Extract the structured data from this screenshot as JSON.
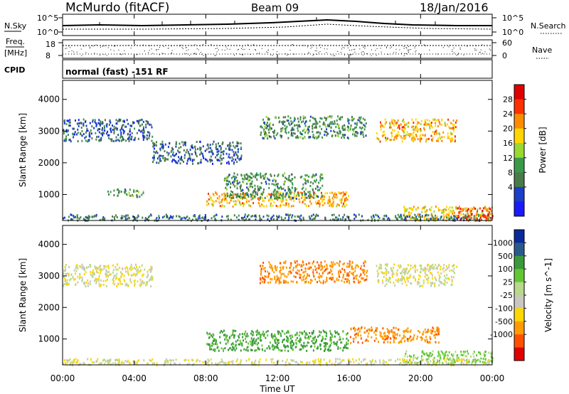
{
  "header": {
    "station": "McMurdo (fitACF)",
    "beam": "Beam 09",
    "date": "18/Jan/2016"
  },
  "params": {
    "nsky_label": "N.Sky",
    "nsky_ticks": [
      "10^5",
      "10^0"
    ],
    "nsearch_label": "N.Search",
    "nsearch_ticks": [
      "10^5",
      "10^0"
    ],
    "freq_label": "Freq.",
    "freq_unit": "[MHz]",
    "freq_ticks": [
      "18",
      "8"
    ],
    "nave_label": "Nave",
    "nave_ticks": [
      "60",
      "0"
    ],
    "cpid_label": "CPID",
    "cpid_text": "normal (fast) -151 RF"
  },
  "chart_data": [
    {
      "type": "heatmap",
      "title": "",
      "xlabel": "Time UT",
      "ylabel": "Slant Range [km]",
      "colorbar_label": "Power [dB]",
      "xlim": [
        0,
        24
      ],
      "ylim": [
        180,
        4600
      ],
      "x_ticks": [
        "00:00",
        "04:00",
        "08:00",
        "12:00",
        "16:00",
        "20:00",
        "00:00"
      ],
      "y_ticks": [
        1000,
        2000,
        3000,
        4000
      ],
      "colorbar_ticks": [
        "28",
        "24",
        "20",
        "16",
        "12",
        "8",
        "4"
      ],
      "colorbar_colors": [
        "#e00000",
        "#ff3000",
        "#ff8c00",
        "#ffd700",
        "#9ad832",
        "#3a9a4a",
        "#4a7a4a",
        "#1a3fc8",
        "#1a1aff"
      ],
      "regions": [
        {
          "t0": 0.0,
          "t1": 5.0,
          "r0": 2700,
          "r1": 3400,
          "value": 6
        },
        {
          "t0": 5.0,
          "t1": 10.0,
          "r0": 2000,
          "r1": 2700,
          "value": 6
        },
        {
          "t0": 8.0,
          "t1": 16.0,
          "r0": 650,
          "r1": 1100,
          "value": 22
        },
        {
          "t0": 9.0,
          "t1": 14.5,
          "r0": 900,
          "r1": 1700,
          "value": 10
        },
        {
          "t0": 11.0,
          "t1": 17.0,
          "r0": 2800,
          "r1": 3500,
          "value": 10
        },
        {
          "t0": 17.5,
          "t1": 22.0,
          "r0": 2700,
          "r1": 3400,
          "value": 22
        },
        {
          "t0": 19.0,
          "t1": 24.0,
          "r0": 200,
          "r1": 650,
          "value": 20
        },
        {
          "t0": 0.0,
          "t1": 24.0,
          "r0": 200,
          "r1": 400,
          "value": 8
        },
        {
          "t0": 2.5,
          "t1": 4.5,
          "r0": 950,
          "r1": 1200,
          "value": 10
        },
        {
          "t0": 22.0,
          "t1": 24.0,
          "r0": 200,
          "r1": 600,
          "value": 28
        }
      ]
    },
    {
      "type": "heatmap",
      "title": "",
      "xlabel": "Time UT",
      "ylabel": "Slant Range [km]",
      "colorbar_label": "Velocity [m s^-1]",
      "xlim": [
        0,
        24
      ],
      "ylim": [
        180,
        4600
      ],
      "x_ticks": [
        "00:00",
        "04:00",
        "08:00",
        "12:00",
        "16:00",
        "20:00",
        "00:00"
      ],
      "y_ticks": [
        1000,
        2000,
        3000,
        4000
      ],
      "colorbar_ticks": [
        "1000",
        "500",
        "100",
        "25",
        "-25",
        "-100",
        "-500",
        "-1000"
      ],
      "colorbar_colors": [
        "#0a2a9a",
        "#2a5a8a",
        "#3a9a3a",
        "#62c832",
        "#b8d88a",
        "#c8c8c0",
        "#ffd700",
        "#ff9a00",
        "#ff5000",
        "#e00000"
      ],
      "regions": [
        {
          "t0": 0.0,
          "t1": 5.0,
          "r0": 2700,
          "r1": 3400,
          "value": 0
        },
        {
          "t0": 8.0,
          "t1": 16.0,
          "r0": 650,
          "r1": 1300,
          "value": 300
        },
        {
          "t0": 11.0,
          "t1": 17.0,
          "r0": 2800,
          "r1": 3500,
          "value": -200
        },
        {
          "t0": 17.5,
          "t1": 22.0,
          "r0": 2700,
          "r1": 3400,
          "value": 0
        },
        {
          "t0": 16.0,
          "t1": 21.0,
          "r0": 900,
          "r1": 1400,
          "value": -200
        },
        {
          "t0": 19.0,
          "t1": 24.0,
          "r0": 250,
          "r1": 650,
          "value": 150
        },
        {
          "t0": 0.0,
          "t1": 24.0,
          "r0": 200,
          "r1": 400,
          "value": 0
        }
      ]
    }
  ],
  "time_axis": {
    "label": "Time UT",
    "ticks": [
      "00:00",
      "04:00",
      "08:00",
      "12:00",
      "16:00",
      "20:00",
      "00:00"
    ]
  }
}
